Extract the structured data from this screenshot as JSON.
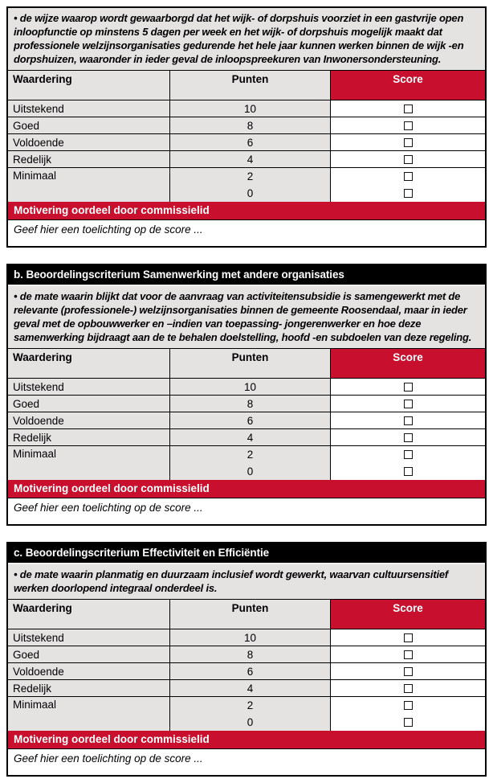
{
  "colors": {
    "accent_red": "#c8102e",
    "cell_gray": "#e5e2e2",
    "title_bar_black": "#000000"
  },
  "sections": [
    {
      "id": "a",
      "title": "",
      "description": "• de wijze waarop wordt gewaarborgd dat het wijk- of dorpshuis voorziet in een gastvrije open inloopfunctie op minstens 5 dagen per week en het wijk- of dorpshuis mogelijk maakt dat professionele welzijnsorganisaties gedurende het hele jaar kunnen werken binnen de wijk -en dorpshuizen, waaronder in ieder geval de inloopspreekuren van Inwonersondersteuning."
    },
    {
      "id": "b",
      "title": "b. Beoordelingscriterium Samenwerking met andere organisaties",
      "description": "• de mate waarin blijkt dat voor de aanvraag van activiteitensubsidie is samengewerkt met de relevante (professionele-) welzijnsorganisaties binnen de gemeente Roosendaal, maar in ieder geval met de opbouwwerker en –indien van toepassing- jongerenwerker en hoe deze samenwerking bijdraagt aan de te behalen doelstelling, hoofd -en subdoelen van deze regeling."
    },
    {
      "id": "c",
      "title": "c. Beoordelingscriterium Effectiviteit en Efficiëntie",
      "description": "• de mate waarin planmatig en duurzaam inclusief wordt gewerkt, waarvan cultuursensitief werken doorlopend integraal onderdeel is."
    }
  ],
  "table": {
    "headers": {
      "rating": "Waardering",
      "points": "Punten",
      "score": "Score"
    },
    "rows": [
      {
        "label": "Uitstekend",
        "points": "10"
      },
      {
        "label": "Goed",
        "points": "8"
      },
      {
        "label": "Voldoende",
        "points": "6"
      },
      {
        "label": "Redelijk",
        "points": "4"
      },
      {
        "label": "Minimaal",
        "points_a": "2",
        "points_b": "0"
      }
    ],
    "motivering_label": "Motivering oordeel door commissielid",
    "toelichting_placeholder": "Geef hier een toelichting op de score ..."
  }
}
